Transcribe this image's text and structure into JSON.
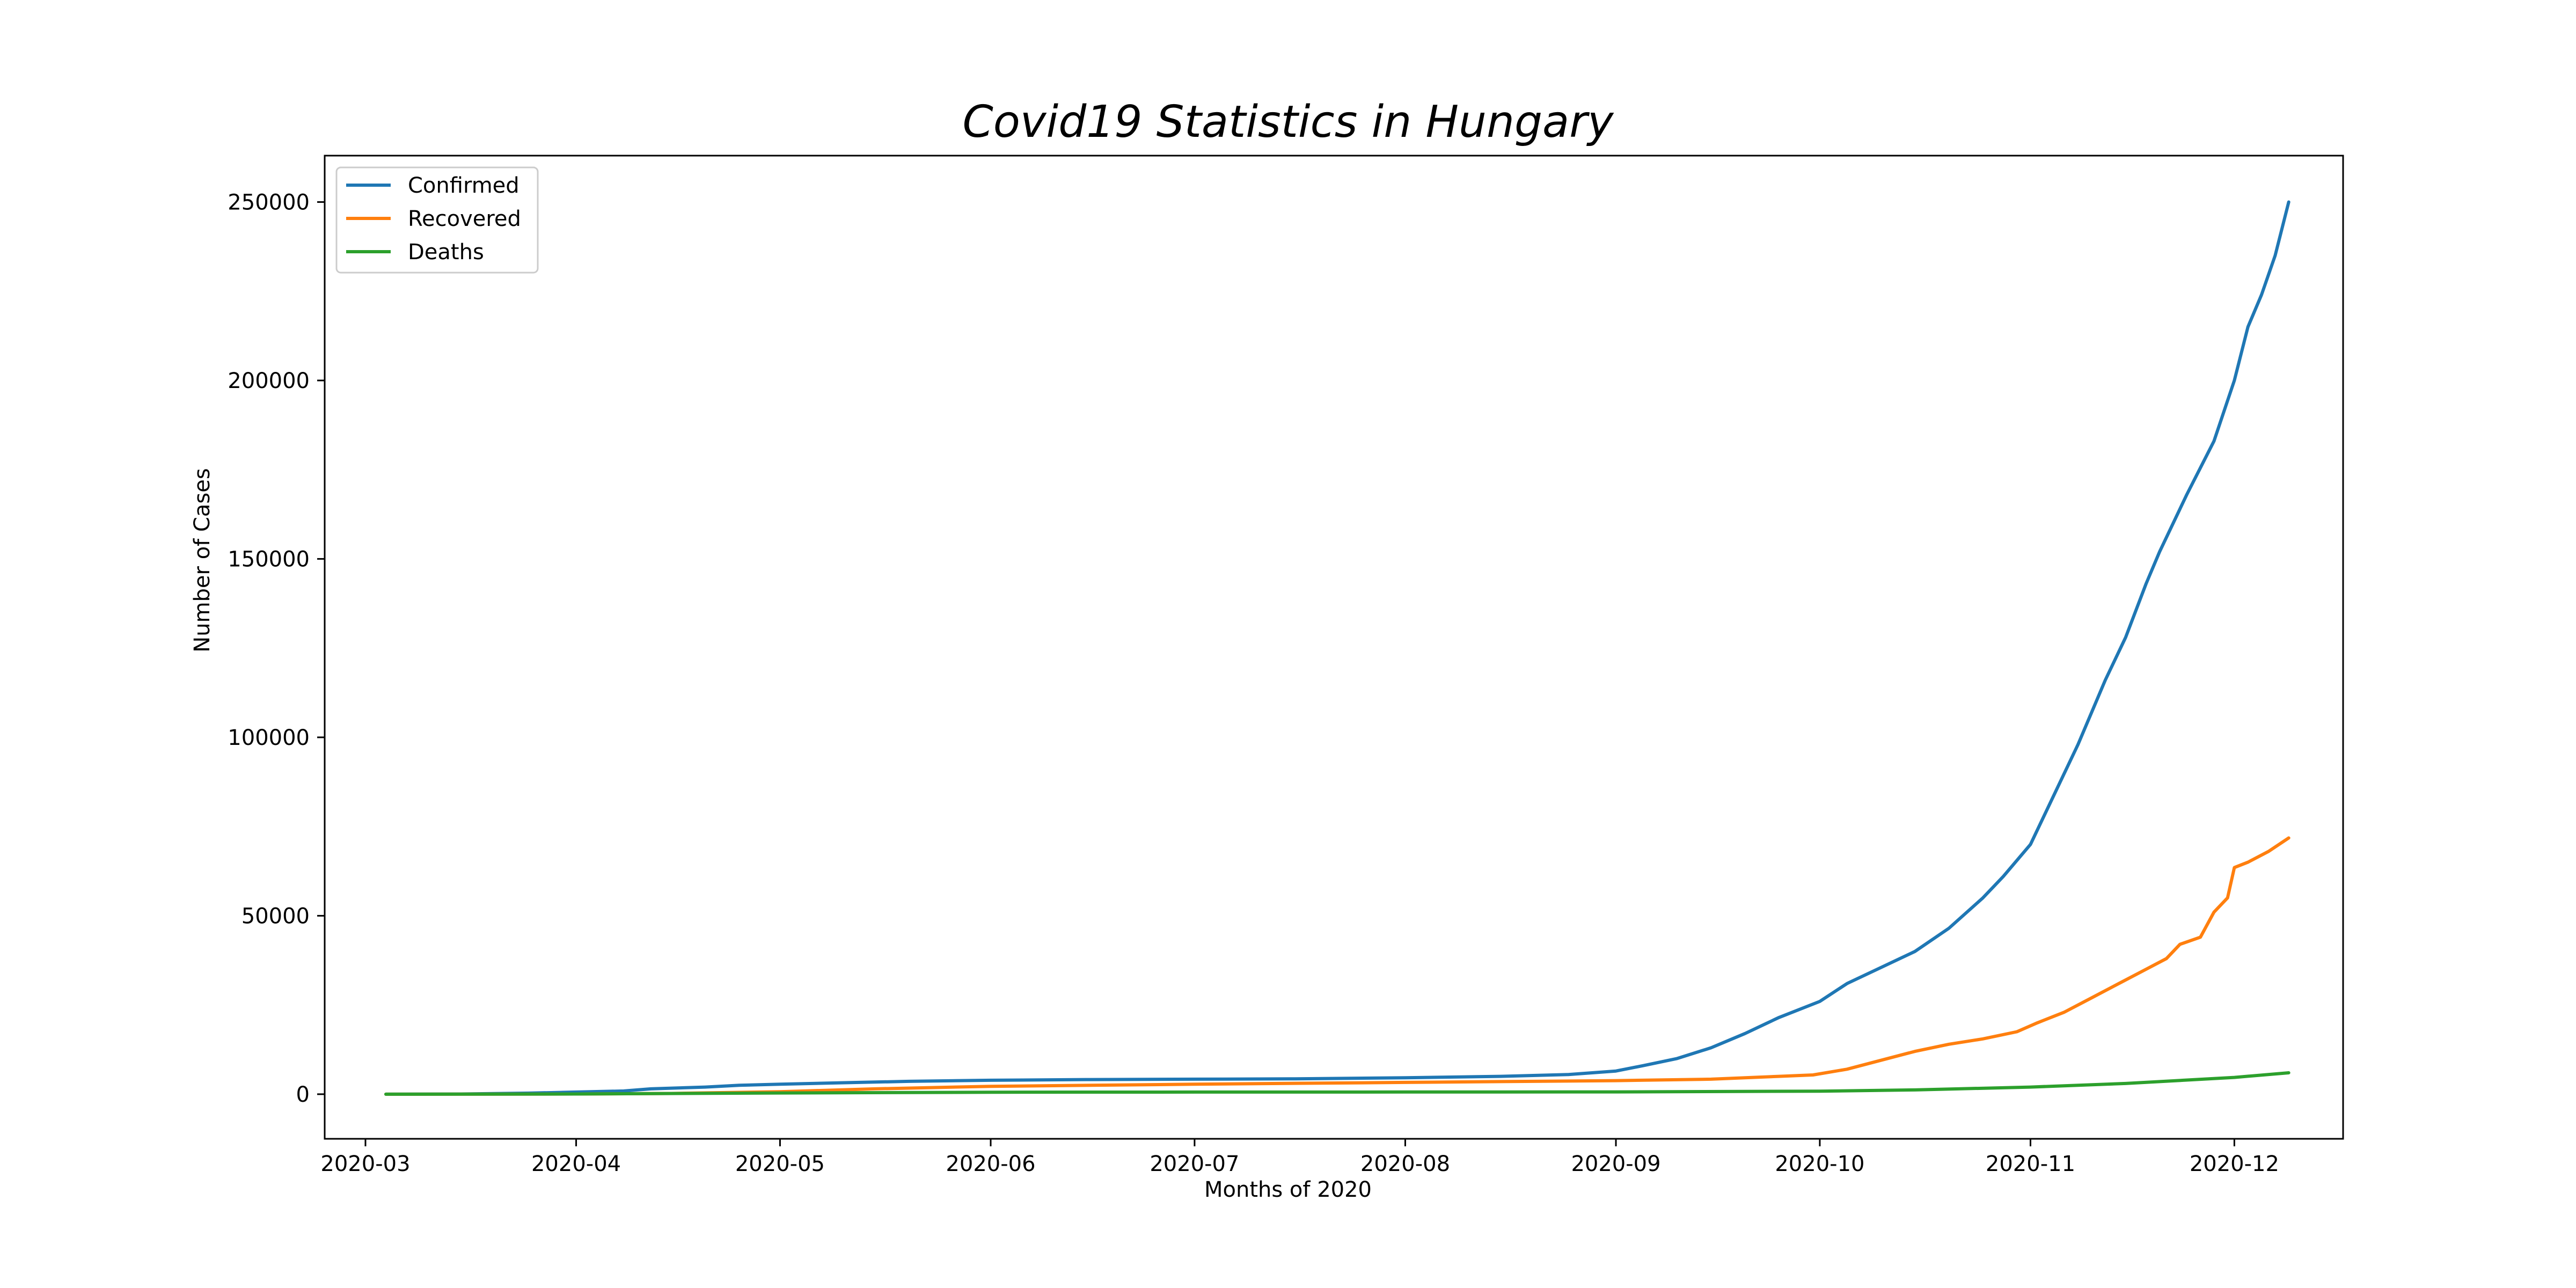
{
  "chart_data": {
    "type": "line",
    "title": "Covid19 Statistics in Hungary",
    "xlabel": "Months of 2020",
    "ylabel": "Number of Cases",
    "xlim": [
      "2020-02-24",
      "2020-12-17"
    ],
    "ylim": [
      -12500,
      263000
    ],
    "x_ticks": [
      "2020-03",
      "2020-04",
      "2020-05",
      "2020-06",
      "2020-07",
      "2020-08",
      "2020-09",
      "2020-10",
      "2020-11",
      "2020-12"
    ],
    "y_ticks": [
      0,
      50000,
      100000,
      150000,
      200000,
      250000
    ],
    "grid": false,
    "legend": "top-left",
    "series": [
      {
        "name": "Confirmed",
        "color": "#1f77b4",
        "points": [
          [
            "2020-03-04",
            0
          ],
          [
            "2020-03-15",
            50
          ],
          [
            "2020-03-25",
            300
          ],
          [
            "2020-04-01",
            600
          ],
          [
            "2020-04-08",
            900
          ],
          [
            "2020-04-12",
            1500
          ],
          [
            "2020-04-20",
            2000
          ],
          [
            "2020-04-25",
            2500
          ],
          [
            "2020-05-01",
            2800
          ],
          [
            "2020-05-10",
            3200
          ],
          [
            "2020-05-20",
            3600
          ],
          [
            "2020-06-01",
            3900
          ],
          [
            "2020-06-15",
            4100
          ],
          [
            "2020-07-01",
            4200
          ],
          [
            "2020-07-15",
            4300
          ],
          [
            "2020-08-01",
            4600
          ],
          [
            "2020-08-15",
            5000
          ],
          [
            "2020-08-25",
            5500
          ],
          [
            "2020-09-01",
            6500
          ],
          [
            "2020-09-05",
            8000
          ],
          [
            "2020-09-10",
            10000
          ],
          [
            "2020-09-15",
            13000
          ],
          [
            "2020-09-20",
            17000
          ],
          [
            "2020-09-25",
            21500
          ],
          [
            "2020-10-01",
            26000
          ],
          [
            "2020-10-05",
            31000
          ],
          [
            "2020-10-10",
            35500
          ],
          [
            "2020-10-15",
            40000
          ],
          [
            "2020-10-20",
            46500
          ],
          [
            "2020-10-25",
            55000
          ],
          [
            "2020-10-28",
            61000
          ],
          [
            "2020-11-01",
            70000
          ],
          [
            "2020-11-04",
            82000
          ],
          [
            "2020-11-08",
            98000
          ],
          [
            "2020-11-12",
            116000
          ],
          [
            "2020-11-15",
            128000
          ],
          [
            "2020-11-18",
            143000
          ],
          [
            "2020-11-20",
            152000
          ],
          [
            "2020-11-24",
            168000
          ],
          [
            "2020-11-28",
            183000
          ],
          [
            "2020-12-01",
            200000
          ],
          [
            "2020-12-03",
            215000
          ],
          [
            "2020-12-05",
            224000
          ],
          [
            "2020-12-07",
            235000
          ],
          [
            "2020-12-09",
            250000
          ]
        ]
      },
      {
        "name": "Recovered",
        "color": "#ff7f0e",
        "points": [
          [
            "2020-03-04",
            0
          ],
          [
            "2020-04-01",
            50
          ],
          [
            "2020-04-15",
            200
          ],
          [
            "2020-05-01",
            700
          ],
          [
            "2020-05-15",
            1500
          ],
          [
            "2020-06-01",
            2200
          ],
          [
            "2020-07-01",
            2800
          ],
          [
            "2020-08-01",
            3300
          ],
          [
            "2020-09-01",
            3800
          ],
          [
            "2020-09-15",
            4200
          ],
          [
            "2020-09-25",
            5000
          ],
          [
            "2020-09-30",
            5400
          ],
          [
            "2020-10-05",
            7000
          ],
          [
            "2020-10-10",
            9500
          ],
          [
            "2020-10-15",
            12000
          ],
          [
            "2020-10-20",
            14000
          ],
          [
            "2020-10-25",
            15500
          ],
          [
            "2020-10-30",
            17500
          ],
          [
            "2020-11-02",
            20000
          ],
          [
            "2020-11-06",
            23000
          ],
          [
            "2020-11-10",
            27000
          ],
          [
            "2020-11-14",
            31000
          ],
          [
            "2020-11-18",
            35000
          ],
          [
            "2020-11-21",
            38000
          ],
          [
            "2020-11-23",
            42000
          ],
          [
            "2020-11-26",
            44000
          ],
          [
            "2020-11-28",
            51000
          ],
          [
            "2020-11-30",
            55000
          ],
          [
            "2020-12-01",
            63500
          ],
          [
            "2020-12-03",
            65000
          ],
          [
            "2020-12-06",
            68000
          ],
          [
            "2020-12-09",
            71800
          ]
        ]
      },
      {
        "name": "Deaths",
        "color": "#2ca02c",
        "points": [
          [
            "2020-03-04",
            0
          ],
          [
            "2020-04-01",
            50
          ],
          [
            "2020-05-01",
            350
          ],
          [
            "2020-06-01",
            550
          ],
          [
            "2020-07-01",
            600
          ],
          [
            "2020-08-01",
            610
          ],
          [
            "2020-09-01",
            650
          ],
          [
            "2020-10-01",
            850
          ],
          [
            "2020-10-15",
            1200
          ],
          [
            "2020-11-01",
            2000
          ],
          [
            "2020-11-15",
            3000
          ],
          [
            "2020-12-01",
            4700
          ],
          [
            "2020-12-09",
            6000
          ]
        ]
      }
    ]
  }
}
